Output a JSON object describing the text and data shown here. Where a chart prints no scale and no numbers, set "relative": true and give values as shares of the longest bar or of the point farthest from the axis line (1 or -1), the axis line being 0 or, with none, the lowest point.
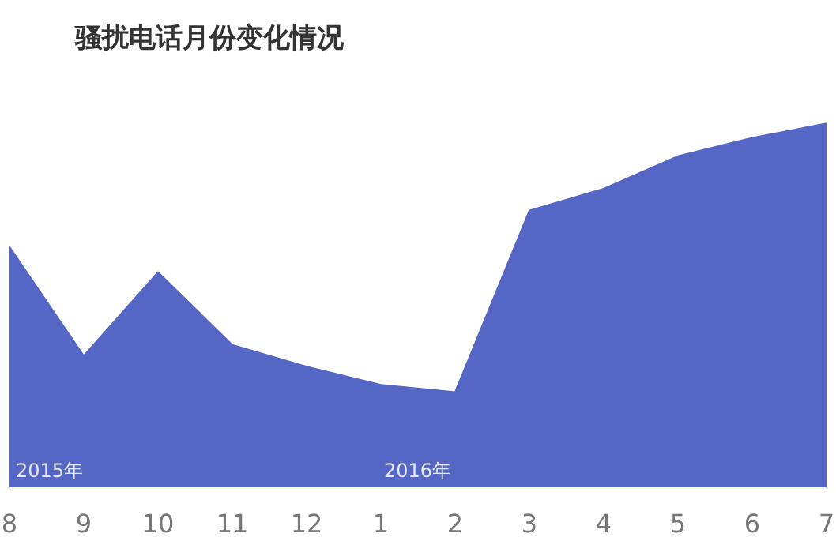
{
  "chart_data": {
    "type": "area",
    "title": "骚扰电话月份变化情况",
    "relative": true,
    "categories": [
      "8",
      "9",
      "10",
      "11",
      "12",
      "1",
      "2",
      "3",
      "4",
      "5",
      "6",
      "7"
    ],
    "series": [
      {
        "color": "#5566c4",
        "values": [
          0.66,
          0.36,
          0.59,
          0.39,
          0.33,
          0.28,
          0.26,
          0.76,
          0.82,
          0.91,
          0.96,
          1
        ]
      }
    ],
    "annotations": [
      "2015年",
      "2016年"
    ]
  }
}
